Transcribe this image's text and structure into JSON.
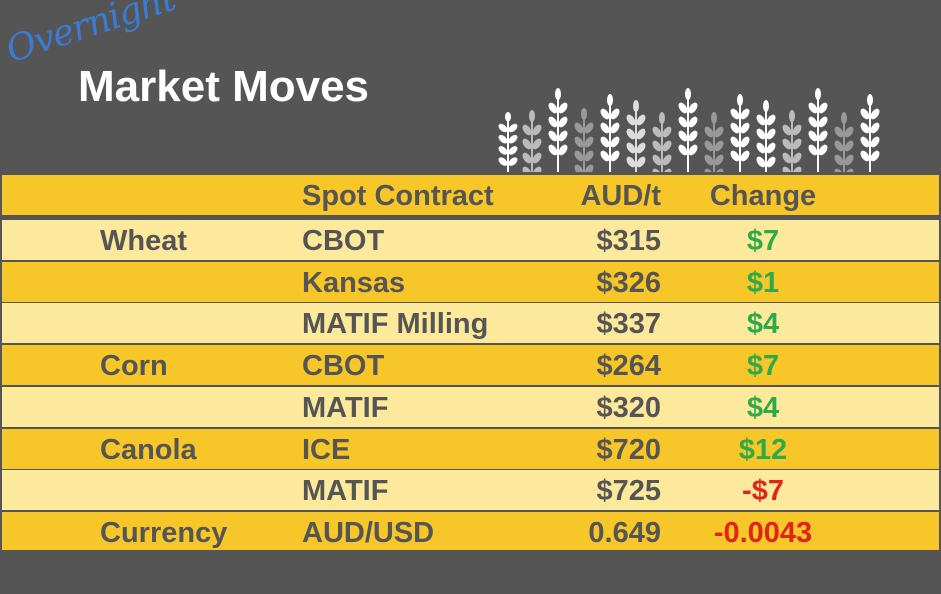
{
  "header": {
    "kicker": "Overnight",
    "title": "Market Moves"
  },
  "table": {
    "columns": [
      "Spot Contract",
      "AUD/t",
      "Change"
    ],
    "groups": [
      {
        "name": "Wheat",
        "rows": [
          {
            "contract": "CBOT",
            "price": "$315",
            "change": "$7"
          },
          {
            "contract": "Kansas",
            "price": "$326",
            "change": "$1"
          },
          {
            "contract": "MATIF Milling",
            "price": "$337",
            "change": "$4"
          }
        ]
      },
      {
        "name": "Corn",
        "rows": [
          {
            "contract": "CBOT",
            "price": "$264",
            "change": "$7"
          },
          {
            "contract": "MATIF",
            "price": "$320",
            "change": "$4"
          }
        ]
      },
      {
        "name": "Canola",
        "rows": [
          {
            "contract": "ICE",
            "price": "$720",
            "change": "$12"
          },
          {
            "contract": "MATIF",
            "price": "$725",
            "change": "-$7"
          }
        ]
      },
      {
        "name": "Currency",
        "rows": [
          {
            "contract": "AUD/USD",
            "price": "0.649",
            "change": "-0.0043"
          }
        ]
      }
    ]
  }
}
